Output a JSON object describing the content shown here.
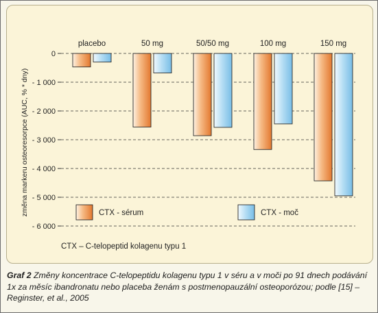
{
  "chart_data": {
    "type": "bar",
    "title": "",
    "xlabel": "",
    "ylabel": "změna markeru osteoresorpce (AUC, % * dny)",
    "categories": [
      "placebo",
      "50 mg",
      "50/50 mg",
      "100 mg",
      "150 mg"
    ],
    "series": [
      {
        "name": "CTX - sérum",
        "values": [
          -470,
          -2560,
          -2860,
          -3340,
          -4430
        ],
        "color": "#e8823a"
      },
      {
        "name": "CTX - moč",
        "values": [
          -300,
          -680,
          -2570,
          -2450,
          -4950
        ],
        "color": "#8ec9ea"
      }
    ],
    "ylim": [
      -6000,
      0
    ],
    "yticks": [
      0,
      -1000,
      -2000,
      -3000,
      -4000,
      -5000,
      -6000
    ],
    "ytick_labels": [
      "0",
      "- 1 000",
      "- 2 000",
      "- 3 000",
      "- 4 000",
      "- 5 000",
      "- 6 000"
    ],
    "grid": "horizontal dashed",
    "legend_position": "bottom"
  },
  "footnote": "CTX – C-telopeptid kolagenu typu 1",
  "caption": {
    "label": "Graf 2",
    "text": "Změny koncentrace C-telopeptidu kolagenu typu 1 v séru a v moči po 91 dnech podávání 1x za měsíc ibandronatu nebo placeba ženám s postmenopauzální osteoporózou; podle [15] – Reginster, et al., 2005"
  }
}
